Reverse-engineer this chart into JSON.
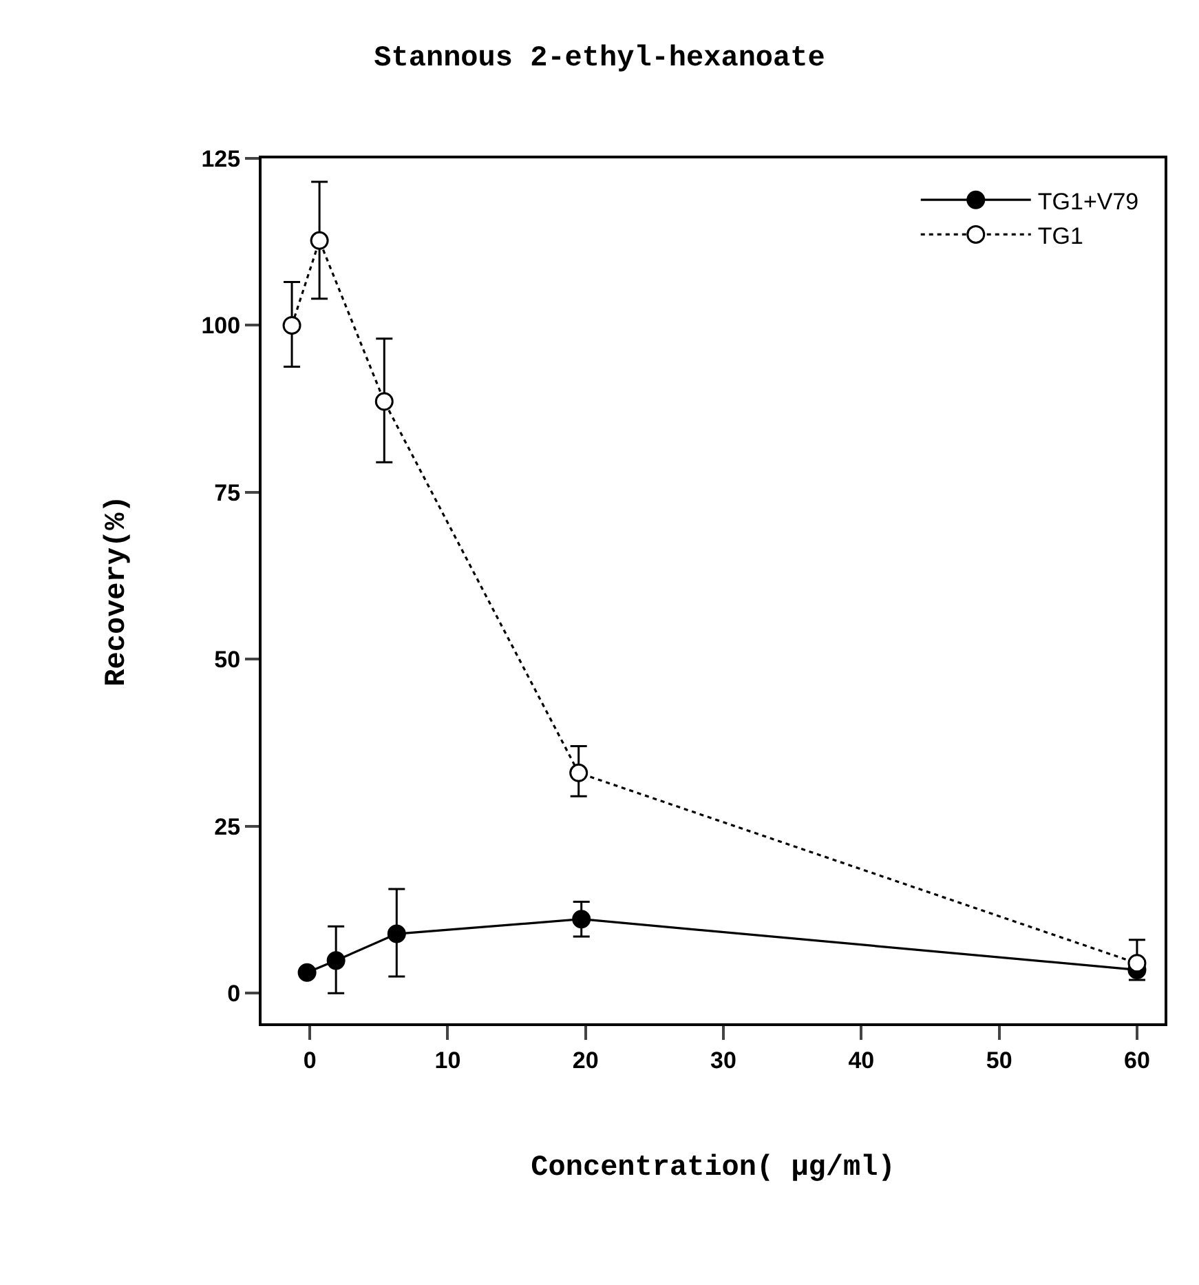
{
  "chart_data": {
    "type": "line",
    "title": "Stannous 2-ethyl-hexanoate",
    "xlabel": "Concentration( μg/ml)",
    "ylabel": "Recovery(%)",
    "xlim": [
      -3.5,
      62
    ],
    "xticks": [
      0,
      10,
      20,
      30,
      40,
      50,
      60
    ],
    "ylim": [
      -4.5,
      125
    ],
    "yticks": [
      0,
      25,
      50,
      75,
      100,
      125
    ],
    "grid": false,
    "legend": "top right",
    "series": [
      {
        "name": "TG1+V79",
        "color": "#000000",
        "marker": "circle",
        "line_style": "solid",
        "colors": [
          "#000000",
          "#000000",
          "#000000",
          "#000000",
          "#000000"
        ],
        "x": [
          -0.2,
          1.9,
          6.3,
          19.7,
          60
        ],
        "values": [
          3.1,
          4.9,
          8.9,
          11.1,
          3.5
        ],
        "errors": [
          null,
          [
            0,
            10
          ],
          [
            2.5,
            15.6
          ],
          [
            8.5,
            13.7
          ],
          [
            2,
            5
          ]
        ]
      },
      {
        "name": "TG1",
        "color": "#000000",
        "marker": "circle",
        "line_style": "dotted",
        "colors": [
          "#ffffff",
          "#ffffff",
          "#ffffff",
          "#ffffff",
          "#ffffff"
        ],
        "x": [
          -1.3,
          0.7,
          5.4,
          19.5,
          60
        ],
        "values": [
          100,
          112.7,
          88.6,
          33,
          4.5
        ],
        "errors": [
          [
            93.8,
            106.5
          ],
          [
            104,
            121.5
          ],
          [
            79.5,
            98
          ],
          [
            29.5,
            37
          ],
          [
            3,
            8
          ]
        ]
      }
    ]
  }
}
